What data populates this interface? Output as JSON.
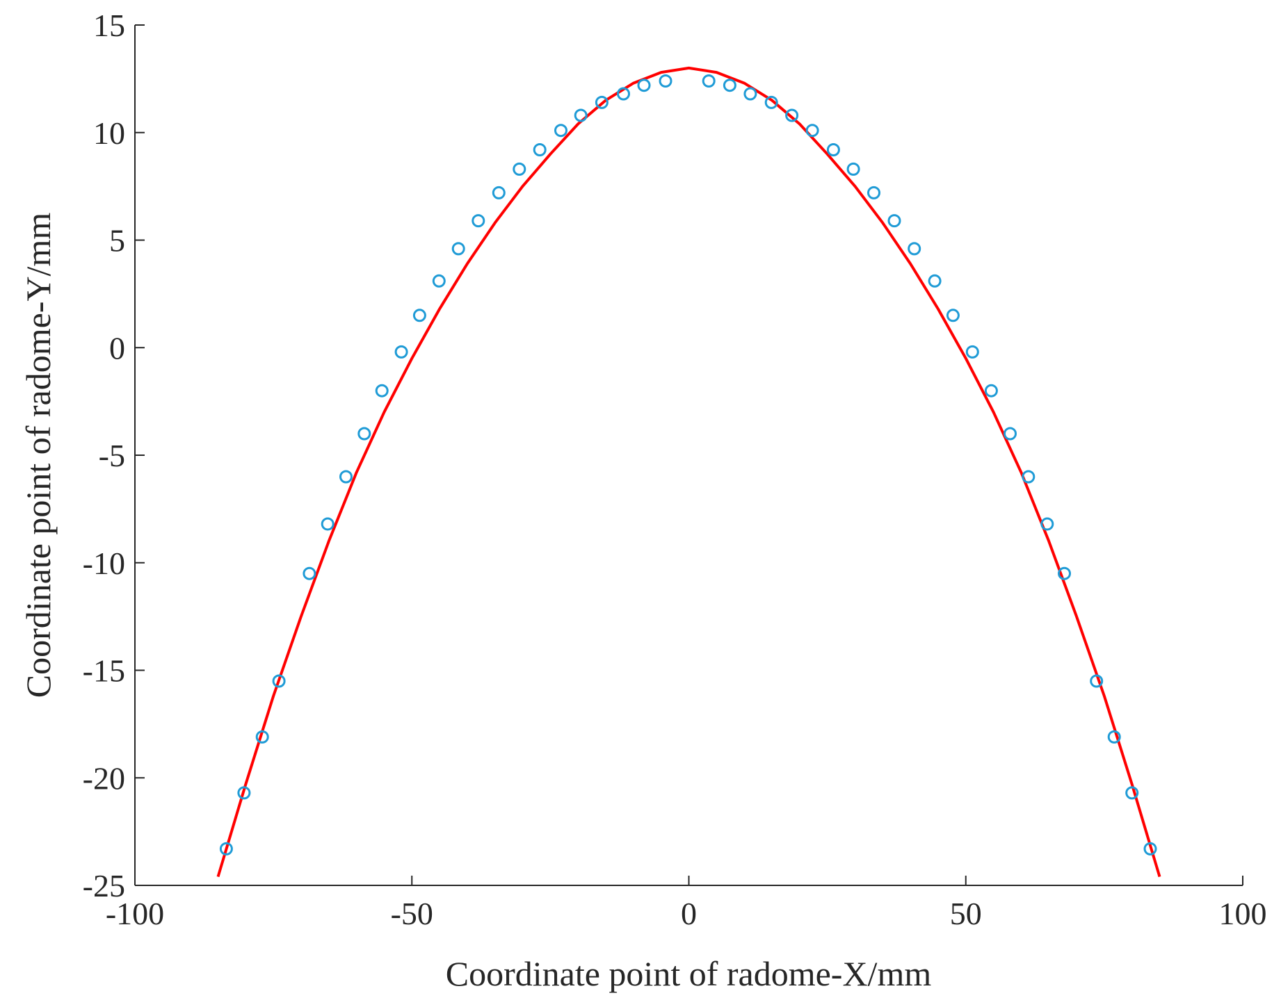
{
  "chart_data": {
    "type": "scatter",
    "title": "",
    "xlabel": "Coordinate point of radome-X/mm",
    "ylabel": "Coordinate point of radome-Y/mm",
    "xlim": [
      -100,
      100
    ],
    "ylim": [
      -25,
      15
    ],
    "xticks": [
      -100,
      -50,
      0,
      50,
      100
    ],
    "xtick_labels": [
      "-100",
      "-50",
      "0",
      "50",
      "100"
    ],
    "yticks": [
      15,
      10,
      5,
      0,
      -5,
      -10,
      -15,
      -20,
      -25
    ],
    "ytick_labels": [
      "15",
      "10",
      "5",
      "0",
      "-5",
      "-10",
      "-15",
      "-20",
      "-25"
    ],
    "grid": false,
    "legend": "none",
    "series": [
      {
        "type": "scatter",
        "marker": "open-circle",
        "color": "#1f9bd6",
        "x": [
          -83.5,
          -80.3,
          -77.0,
          -74.0,
          -68.5,
          -65.2,
          -61.9,
          -58.6,
          -55.4,
          -51.9,
          -48.6,
          -45.1,
          -41.6,
          -38.0,
          -34.3,
          -30.6,
          -26.9,
          -23.1,
          -19.5,
          -15.7,
          -11.8,
          -8.1,
          -4.2,
          3.6,
          7.4,
          11.1,
          14.9,
          18.6,
          22.3,
          26.1,
          29.7,
          33.4,
          37.1,
          40.7,
          44.4,
          47.7,
          51.2,
          54.6,
          58.0,
          61.3,
          64.7,
          67.8,
          73.6,
          76.8,
          80.0,
          83.3
        ],
        "y": [
          -23.3,
          -20.7,
          -18.1,
          -15.5,
          -10.5,
          -8.2,
          -6.0,
          -4.0,
          -2.0,
          -0.2,
          1.5,
          3.1,
          4.6,
          5.9,
          7.2,
          8.3,
          9.2,
          10.1,
          10.8,
          11.4,
          11.8,
          12.2,
          12.4,
          12.4,
          12.2,
          11.8,
          11.4,
          10.8,
          10.1,
          9.2,
          8.3,
          7.2,
          5.9,
          4.6,
          3.1,
          1.5,
          -0.2,
          -2.0,
          -4.0,
          -6.0,
          -8.2,
          -10.5,
          -15.5,
          -18.1,
          -20.7,
          -23.3
        ]
      },
      {
        "type": "line",
        "color": "#ff0000",
        "x": [
          -85,
          -80,
          -75,
          -70,
          -65,
          -60,
          -55,
          -50,
          -45,
          -40,
          -35,
          -30,
          -25,
          -20,
          -15,
          -10,
          -5,
          0,
          5,
          10,
          15,
          20,
          25,
          30,
          35,
          40,
          45,
          50,
          55,
          60,
          65,
          70,
          75,
          80,
          85
        ],
        "y": [
          -24.6,
          -20.3,
          -16.2,
          -12.5,
          -9.0,
          -5.8,
          -3.0,
          -0.5,
          1.8,
          3.9,
          5.8,
          7.5,
          9.0,
          10.4,
          11.5,
          12.3,
          12.8,
          13.0,
          12.8,
          12.3,
          11.5,
          10.4,
          9.0,
          7.5,
          5.8,
          3.9,
          1.8,
          -0.5,
          -3.0,
          -5.8,
          -9.0,
          -12.5,
          -16.2,
          -20.3,
          -24.6
        ]
      }
    ]
  }
}
